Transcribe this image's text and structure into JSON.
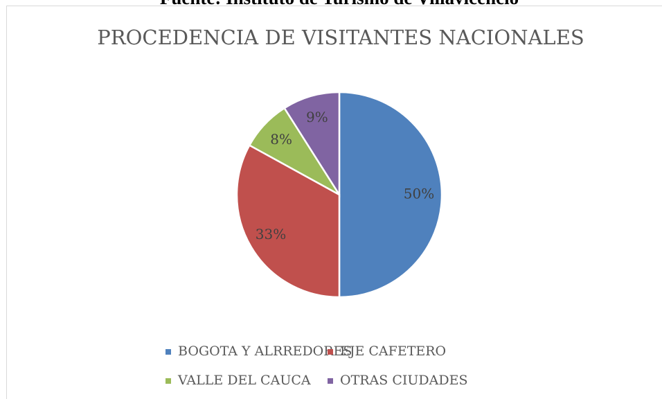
{
  "caption": "Fuente: Instituto de Turismo de Villavicencio",
  "chart_data": {
    "type": "pie",
    "title": "PROCEDENCIA DE VISITANTES NACIONALES",
    "categories": [
      "BOGOTA Y ALRREDORES",
      "EJE CAFETERO",
      "VALLE DEL CAUCA",
      "OTRAS CIUDADES"
    ],
    "values": [
      50,
      33,
      8,
      9
    ],
    "value_labels": [
      "50%",
      "33%",
      "8%",
      "9%"
    ],
    "colors": [
      "#4f81bd",
      "#c0504d",
      "#9bbb59",
      "#8064a2"
    ],
    "legend": "bottom"
  }
}
